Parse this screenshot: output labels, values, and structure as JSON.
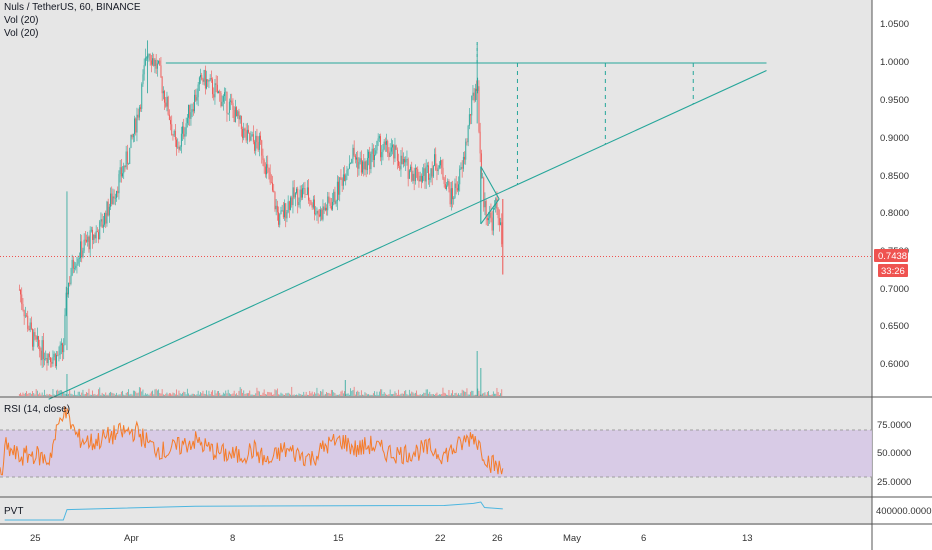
{
  "header": {
    "symbol_line": "Nuls / TetherUS, 60, BINANCE",
    "vol_label_1": "Vol (20)",
    "vol_label_2": "Vol (20)"
  },
  "colors": {
    "background": "#e6e6e6",
    "candle_up": "#26a69a",
    "candle_down": "#ef5350",
    "trendline": "#26a69a",
    "price_line": "#ef5350",
    "rsi_line": "#f57c2a",
    "rsi_band": "#d6c8e6",
    "pvt_line": "#4db6e0",
    "separator": "#555555"
  },
  "price_panel": {
    "ticks": [
      "1.0500",
      "1.0000",
      "0.9500",
      "0.9000",
      "0.8500",
      "0.8000",
      "0.7500",
      "0.7000",
      "0.6500",
      "0.6000"
    ],
    "current_price_label": "0.7438",
    "countdown_label": "33:26"
  },
  "rsi_panel": {
    "label": "RSI (14, close)",
    "ticks": [
      "75.0000",
      "50.0000",
      "25.0000"
    ]
  },
  "pvt_panel": {
    "label": "PVT",
    "tick": "400000.0000"
  },
  "x_axis": {
    "ticks": [
      "25",
      "Apr",
      "8",
      "15",
      "22",
      "26",
      "May",
      "6",
      "13"
    ]
  },
  "chart_data": {
    "type": "candlestick",
    "title": "Nuls / TetherUS, 60, BINANCE",
    "ylim": [
      0.56,
      1.07
    ],
    "rsi_ylim": [
      15,
      90
    ],
    "rsi_band": [
      30,
      70
    ],
    "current_price": 0.7438,
    "price_path": [
      [
        "Mar 24 00:00",
        0.7
      ],
      [
        "Mar 24 12:00",
        0.66
      ],
      [
        "Mar 25 00:00",
        0.63
      ],
      [
        "Mar 25 12:00",
        0.62
      ],
      [
        "Mar 26 00:00",
        0.615
      ],
      [
        "Mar 26 12:00",
        0.61
      ],
      [
        "Mar 27 00:00",
        0.62
      ],
      [
        "Mar 27 06:00",
        0.7
      ],
      [
        "Mar 27 18:00",
        0.74
      ],
      [
        "Mar 28 12:00",
        0.76
      ],
      [
        "Mar 29 12:00",
        0.78
      ],
      [
        "Mar 30 12:00",
        0.83
      ],
      [
        "Mar 31 12:00",
        0.88
      ],
      [
        "Apr 1 06:00",
        0.95
      ],
      [
        "Apr 1 18:00",
        1.02
      ],
      [
        "Apr 2 12:00",
        0.99
      ],
      [
        "Apr 3 06:00",
        0.93
      ],
      [
        "Apr 3 18:00",
        0.88
      ],
      [
        "Apr 4 12:00",
        0.93
      ],
      [
        "Apr 5 12:00",
        0.98
      ],
      [
        "Apr 6 12:00",
        0.96
      ],
      [
        "Apr 7 12:00",
        0.94
      ],
      [
        "Apr 8 12:00",
        0.9
      ],
      [
        "Apr 9 12:00",
        0.89
      ],
      [
        "Apr 10 06:00",
        0.83
      ],
      [
        "Apr 10 18:00",
        0.79
      ],
      [
        "Apr 11 12:00",
        0.82
      ],
      [
        "Apr 12 12:00",
        0.83
      ],
      [
        "Apr 13 12:00",
        0.8
      ],
      [
        "Apr 14 12:00",
        0.82
      ],
      [
        "Apr 15 06:00",
        0.86
      ],
      [
        "Apr 15 18:00",
        0.88
      ],
      [
        "Apr 16 12:00",
        0.86
      ],
      [
        "Apr 17 12:00",
        0.89
      ],
      [
        "Apr 18 12:00",
        0.88
      ],
      [
        "Apr 19 12:00",
        0.86
      ],
      [
        "Apr 20 12:00",
        0.85
      ],
      [
        "Apr 21 12:00",
        0.87
      ],
      [
        "Apr 22 00:00",
        0.85
      ],
      [
        "Apr 22 12:00",
        0.82
      ],
      [
        "Apr 23 06:00",
        0.86
      ],
      [
        "Apr 23 18:00",
        0.93
      ],
      [
        "Apr 24 06:00",
        0.98
      ],
      [
        "Apr 24 12:00",
        0.86
      ],
      [
        "Apr 24 18:00",
        0.81
      ],
      [
        "Apr 25 06:00",
        0.79
      ],
      [
        "Apr 25 12:00",
        0.81
      ],
      [
        "Apr 25 18:00",
        0.8
      ],
      [
        "Apr 26 00:00",
        0.7438
      ]
    ],
    "trendlines": [
      {
        "name": "horizontal resistance",
        "points": [
          [
            "Apr 3",
            1.0
          ],
          [
            "May 14",
            1.0
          ]
        ]
      },
      {
        "name": "ascending support",
        "points": [
          [
            "Mar 26",
            0.555
          ],
          [
            "May 14",
            0.99
          ]
        ]
      },
      {
        "name": "pennant upper",
        "points": [
          [
            "Apr 24 12:00",
            0.863
          ],
          [
            "Apr 25 18:00",
            0.82
          ]
        ]
      },
      {
        "name": "pennant lower",
        "points": [
          [
            "Apr 24 12:00",
            0.787
          ],
          [
            "Apr 25 18:00",
            0.82
          ]
        ]
      }
    ],
    "projection_marks": [
      "Apr 27",
      "May 3",
      "May 9"
    ],
    "rsi_path": [
      [
        "Mar 23",
        55
      ],
      [
        "Mar 24",
        45
      ],
      [
        "Mar 25",
        48
      ],
      [
        "Mar 26",
        42
      ],
      [
        "Mar 27",
        88
      ],
      [
        "Mar 28",
        62
      ],
      [
        "Mar 29",
        58
      ],
      [
        "Mar 30",
        63
      ],
      [
        "Mar 31",
        67
      ],
      [
        "Apr 1",
        68
      ],
      [
        "Apr 2",
        55
      ],
      [
        "Apr 3",
        50
      ],
      [
        "Apr 4",
        55
      ],
      [
        "Apr 5",
        60
      ],
      [
        "Apr 6",
        52
      ],
      [
        "Apr 7",
        48
      ],
      [
        "Apr 8",
        46
      ],
      [
        "Apr 9",
        52
      ],
      [
        "Apr 10",
        40
      ],
      [
        "Apr 11",
        52
      ],
      [
        "Apr 12",
        48
      ],
      [
        "Apr 13",
        44
      ],
      [
        "Apr 14",
        56
      ],
      [
        "Apr 15",
        60
      ],
      [
        "Apr 16",
        52
      ],
      [
        "Apr 17",
        56
      ],
      [
        "Apr 18",
        50
      ],
      [
        "Apr 19",
        48
      ],
      [
        "Apr 20",
        50
      ],
      [
        "Apr 21",
        53
      ],
      [
        "Apr 22",
        47
      ],
      [
        "Apr 23",
        55
      ],
      [
        "Apr 24",
        65
      ],
      [
        "Apr 25",
        42
      ],
      [
        "Apr 26",
        33
      ]
    ],
    "pvt_path": [
      [
        "Mar 23",
        200000
      ],
      [
        "Mar 27 00:00",
        200000
      ],
      [
        "Mar 27 06:00",
        350000
      ],
      [
        "Apr 5",
        400000
      ],
      [
        "Apr 15",
        405000
      ],
      [
        "Apr 22",
        410000
      ],
      [
        "Apr 24",
        440000
      ],
      [
        "Apr 24 12:00",
        460000
      ],
      [
        "Apr 24 18:00",
        380000
      ],
      [
        "Apr 26",
        360000
      ]
    ]
  }
}
